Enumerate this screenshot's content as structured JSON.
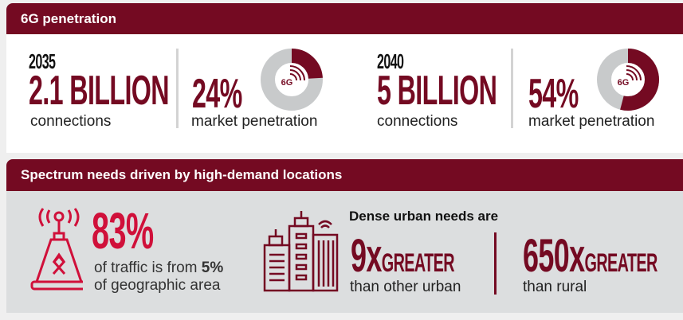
{
  "section1": {
    "title": "6G penetration",
    "stats": [
      {
        "year": "2035",
        "value": "2.1 BILLION",
        "label": "connections",
        "percent": "24%",
        "percent_value": 24,
        "percent_label": "market penetration",
        "donut_icon": "6G"
      },
      {
        "year": "2040",
        "value": "5 BILLION",
        "label": "connections",
        "percent": "54%",
        "percent_value": 54,
        "percent_label": "market penetration",
        "donut_icon": "6G"
      }
    ]
  },
  "section2": {
    "title": "Spectrum needs driven by high-demand locations",
    "traffic": {
      "value": "83%",
      "text_before": "of traffic is from ",
      "bold": "5%",
      "text_after": "of geographic area",
      "icon": "cell-tower-icon"
    },
    "urban": {
      "heading": "Dense urban needs are",
      "icon": "city-buildings-icon",
      "items": [
        {
          "num": "9x",
          "word": "GREATER",
          "label": "than other urban"
        },
        {
          "num": "650x",
          "word": "GREATER",
          "label": "than rural"
        }
      ]
    }
  },
  "colors": {
    "brand": "#740a22",
    "accent": "#d0103a",
    "donut_track": "#c8cacb",
    "panel": "#dcdedf"
  }
}
